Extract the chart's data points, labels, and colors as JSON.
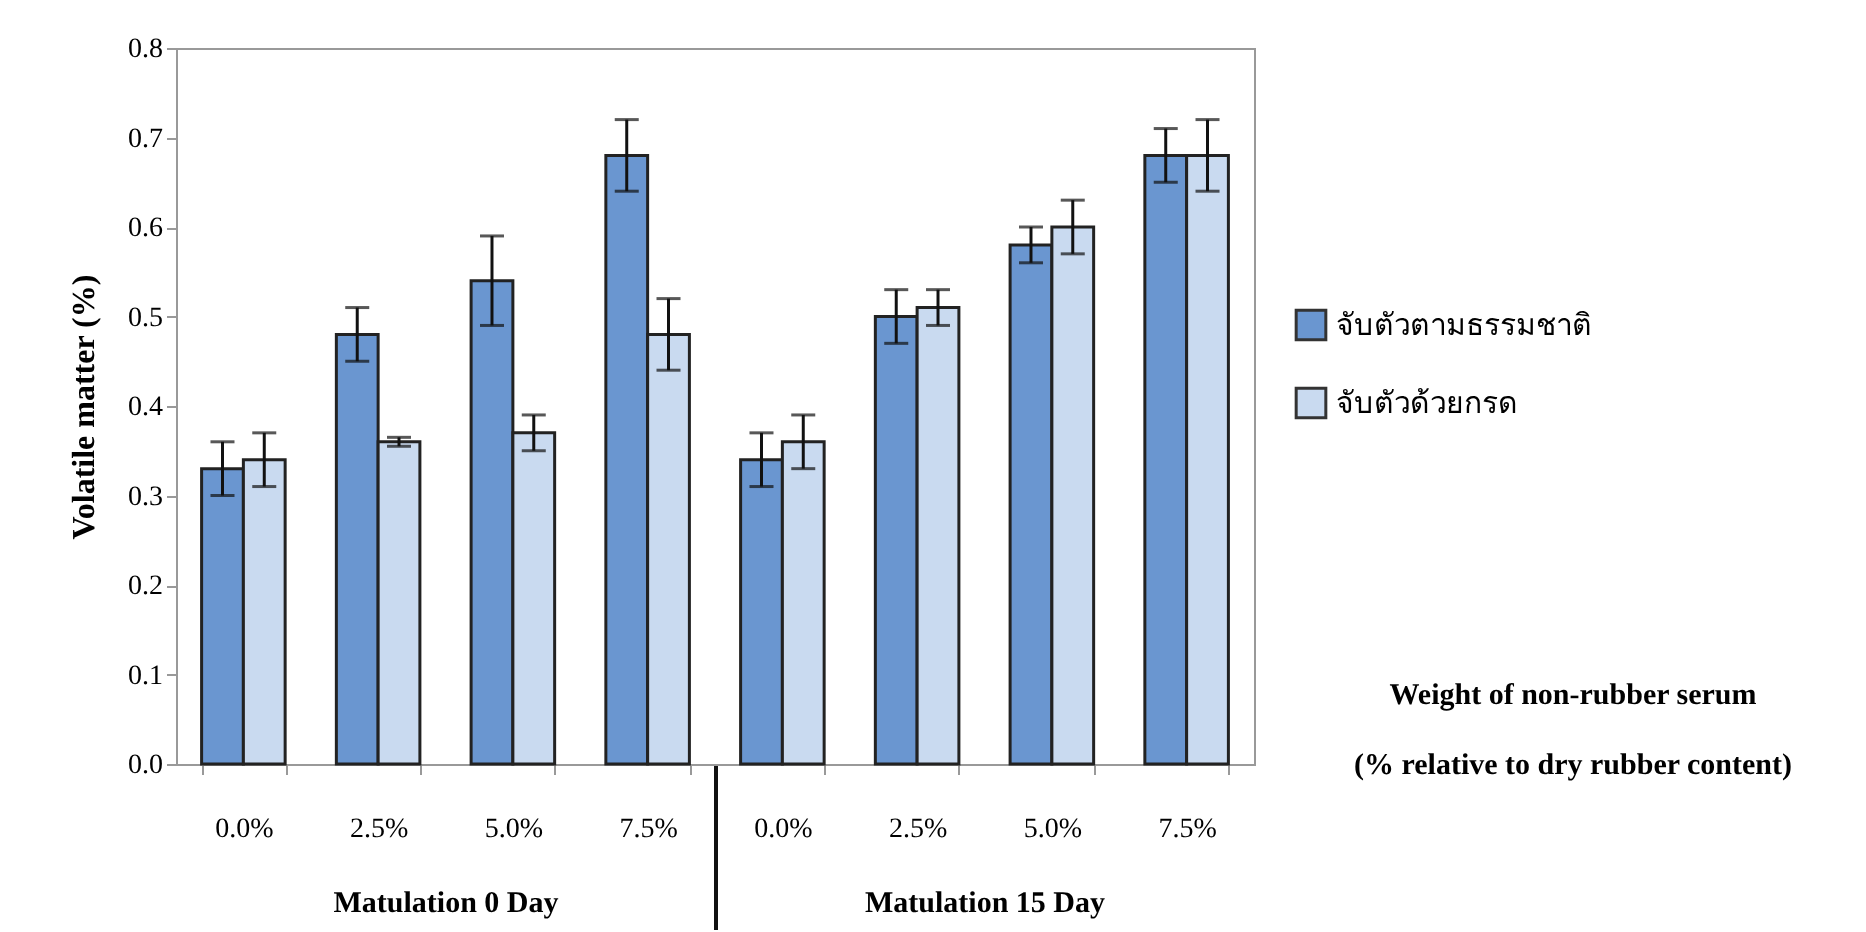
{
  "chart_data": {
    "type": "bar",
    "ylabel": "Volatile matter (%)",
    "categories": [
      "0.0%",
      "2.5%",
      "5.0%",
      "7.5%",
      "0.0%",
      "2.5%",
      "5.0%",
      "7.5%"
    ],
    "series": [
      {
        "name": "จับตัวตามธรรมชาติ",
        "color": "#6a96d0",
        "values": [
          0.33,
          0.48,
          0.54,
          0.68,
          0.34,
          0.5,
          0.58,
          0.68
        ],
        "errors": [
          0.03,
          0.03,
          0.05,
          0.04,
          0.03,
          0.03,
          0.02,
          0.03
        ]
      },
      {
        "name": "จับตัวด้วยกรด",
        "color": "#c9daf0",
        "values": [
          0.34,
          0.36,
          0.37,
          0.48,
          0.36,
          0.51,
          0.6,
          0.68
        ],
        "errors": [
          0.03,
          0.005,
          0.02,
          0.04,
          0.03,
          0.02,
          0.03,
          0.04
        ]
      }
    ],
    "ylim": [
      0,
      0.8
    ],
    "yticks": [
      {
        "value": 0,
        "label": "0.0"
      },
      0.1,
      0.2,
      0.3,
      0.4,
      0.5,
      0.6,
      0.7,
      0.8
    ],
    "grid": false,
    "legend": "right",
    "annotations": [
      "Matulation 0 Day",
      "Matulation 15 Day",
      "Weight of non-rubber serum",
      "(% relative to dry rubber content)"
    ]
  }
}
